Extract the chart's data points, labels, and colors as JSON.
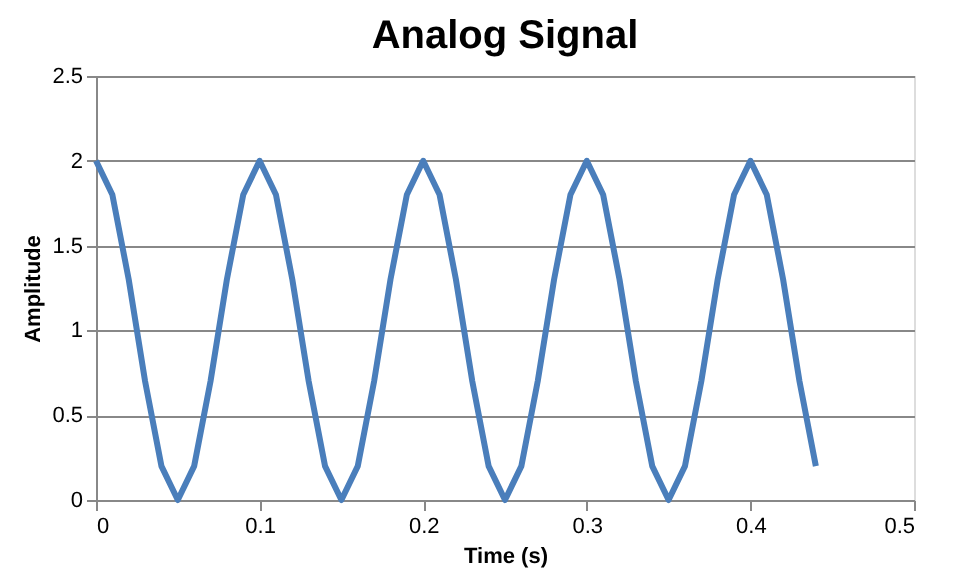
{
  "chart_data": {
    "type": "line",
    "title": "Analog Signal",
    "xlabel": "Time (s)",
    "ylabel": "Amplitude",
    "x": [
      0,
      0.01,
      0.02,
      0.03,
      0.04,
      0.05,
      0.06,
      0.07,
      0.08,
      0.09,
      0.1,
      0.11,
      0.12,
      0.13,
      0.14,
      0.15,
      0.16,
      0.17,
      0.18,
      0.19,
      0.2,
      0.21,
      0.22,
      0.23,
      0.24,
      0.25,
      0.26,
      0.27,
      0.28,
      0.29,
      0.3,
      0.31,
      0.32,
      0.33,
      0.34,
      0.35,
      0.36,
      0.37,
      0.38,
      0.39,
      0.4,
      0.41,
      0.42,
      0.43,
      0.44
    ],
    "series": [
      {
        "color": "#4a7ebb",
        "values": [
          2,
          1.8,
          1.3,
          0.7,
          0.2,
          0,
          0.2,
          0.7,
          1.3,
          1.8,
          2,
          1.8,
          1.3,
          0.7,
          0.2,
          0,
          0.2,
          0.7,
          1.3,
          1.8,
          2,
          1.8,
          1.3,
          0.7,
          0.2,
          0,
          0.2,
          0.7,
          1.3,
          1.8,
          2,
          1.8,
          1.3,
          0.7,
          0.2,
          0,
          0.2,
          0.7,
          1.3,
          1.8,
          2,
          1.8,
          1.3,
          0.7,
          0.2
        ]
      }
    ],
    "xlim": [
      0,
      0.5
    ],
    "xticks": [
      0,
      0.1,
      0.2,
      0.3,
      0.4,
      0.5
    ],
    "ylim": [
      0,
      2.5
    ],
    "yticks": [
      0,
      0.5,
      1,
      1.5,
      2,
      2.5
    ],
    "grid": "y",
    "legend": false,
    "marker": "none",
    "line_style": "solid"
  }
}
